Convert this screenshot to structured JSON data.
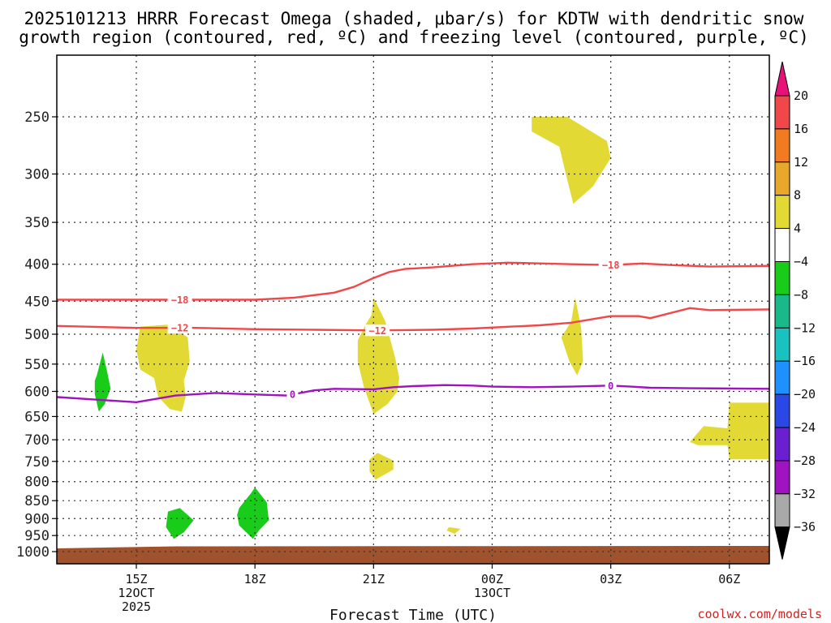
{
  "chart_data": {
    "type": "heatmap",
    "title_lines": [
      "2025101213 HRRR Forecast Omega (shaded, μbar/s) for KDTW with dendritic snow",
      "growth region (contoured, red, ºC) and freezing level (contoured, purple, ºC)"
    ],
    "xlabel": "Forecast Time (UTC)",
    "ylabel": "",
    "x_unit": "hours since 2025-10-12 12Z",
    "xlim": [
      13.0,
      31.1
    ],
    "x_ticks": [
      {
        "x": 15,
        "label": "15Z",
        "sub": [
          "12OCT",
          "2025"
        ]
      },
      {
        "x": 18,
        "label": "18Z",
        "sub": []
      },
      {
        "x": 21,
        "label": "21Z",
        "sub": []
      },
      {
        "x": 24,
        "label": "00Z",
        "sub": [
          "13OCT"
        ]
      },
      {
        "x": 27,
        "label": "03Z",
        "sub": []
      },
      {
        "x": 30,
        "label": "06Z",
        "sub": []
      }
    ],
    "y_unit": "hPa",
    "ylim_pressure": [
      200,
      1020
    ],
    "y_ticks": [
      250,
      300,
      350,
      400,
      450,
      500,
      550,
      600,
      650,
      700,
      750,
      800,
      850,
      900,
      950,
      1000
    ],
    "colorbar": {
      "labels": [
        "20",
        "16",
        "12",
        "8",
        "4",
        "−4",
        "−8",
        "−12",
        "−16",
        "−20",
        "−24",
        "−28",
        "−32",
        "−36"
      ],
      "bands": [
        {
          "range": "20 to 16",
          "color": "#f04848"
        },
        {
          "range": "16 to 12",
          "color": "#f07b20"
        },
        {
          "range": "12 to 8",
          "color": "#e8a82c"
        },
        {
          "range": "8 to 4",
          "color": "#e3d935"
        },
        {
          "range": "4 to -4",
          "color": "#ffffff"
        },
        {
          "range": "-4 to -8",
          "color": "#19cc19"
        },
        {
          "range": "-8 to -12",
          "color": "#19b98c"
        },
        {
          "range": "-12 to -16",
          "color": "#19c1c1"
        },
        {
          "range": "-16 to -20",
          "color": "#1e90ff"
        },
        {
          "range": "-20 to -24",
          "color": "#2948e6"
        },
        {
          "range": "-24 to -28",
          "color": "#6a1fd0"
        },
        {
          "range": "-28 to -32",
          "color": "#9f14c0"
        },
        {
          "range": "-32 to -36",
          "color": "#a9a9a9"
        }
      ],
      "above_color": "#e6127a",
      "below_color": "#000000"
    },
    "shaded_regions": [
      {
        "name": "green-blob-14z",
        "color": "#19cc19",
        "points": [
          [
            14.0,
            570
          ],
          [
            14.15,
            530
          ],
          [
            14.25,
            560
          ],
          [
            14.35,
            595
          ],
          [
            14.2,
            625
          ],
          [
            14.05,
            640
          ],
          [
            13.95,
            605
          ],
          [
            13.95,
            580
          ]
        ]
      },
      {
        "name": "yellow-blob-16z",
        "color": "#e3d935",
        "points": [
          [
            15.0,
            525
          ],
          [
            15.1,
            488
          ],
          [
            15.8,
            485
          ],
          [
            16.3,
            505
          ],
          [
            16.35,
            545
          ],
          [
            16.2,
            580
          ],
          [
            16.25,
            610
          ],
          [
            16.15,
            640
          ],
          [
            15.85,
            635
          ],
          [
            15.55,
            610
          ],
          [
            15.45,
            575
          ],
          [
            15.1,
            560
          ]
        ]
      },
      {
        "name": "yellow-blob-21z",
        "color": "#e3d935",
        "points": [
          [
            20.95,
            470
          ],
          [
            21.0,
            445
          ],
          [
            21.3,
            480
          ],
          [
            21.55,
            540
          ],
          [
            21.65,
            575
          ],
          [
            21.6,
            600
          ],
          [
            21.35,
            625
          ],
          [
            21.0,
            645
          ],
          [
            20.75,
            590
          ],
          [
            20.6,
            545
          ],
          [
            20.6,
            510
          ],
          [
            20.8,
            485
          ]
        ]
      },
      {
        "name": "yellow-blob-02z-upper",
        "color": "#e3d935",
        "points": [
          [
            25.0,
            262
          ],
          [
            25.0,
            250
          ],
          [
            25.9,
            250
          ],
          [
            26.9,
            270
          ],
          [
            27.0,
            285
          ],
          [
            26.55,
            312
          ],
          [
            26.05,
            330
          ],
          [
            25.85,
            298
          ],
          [
            25.7,
            275
          ]
        ]
      },
      {
        "name": "yellow-blob-02z-mid",
        "color": "#e3d935",
        "points": [
          [
            26.0,
            480
          ],
          [
            26.1,
            445
          ],
          [
            26.25,
            490
          ],
          [
            26.3,
            545
          ],
          [
            26.15,
            570
          ],
          [
            25.95,
            545
          ],
          [
            25.75,
            505
          ]
        ]
      },
      {
        "name": "yellow-blob-21z-low",
        "color": "#e3d935",
        "points": [
          [
            20.9,
            745
          ],
          [
            21.1,
            730
          ],
          [
            21.5,
            748
          ],
          [
            21.5,
            770
          ],
          [
            21.05,
            795
          ],
          [
            20.9,
            775
          ]
        ]
      },
      {
        "name": "yellow-blob-06z",
        "color": "#e3d935",
        "points": [
          [
            29.0,
            705
          ],
          [
            29.35,
            670
          ],
          [
            29.95,
            675
          ],
          [
            30.0,
            622
          ],
          [
            31.1,
            622
          ],
          [
            31.1,
            745
          ],
          [
            30.0,
            745
          ],
          [
            29.95,
            712
          ],
          [
            29.2,
            712
          ]
        ]
      },
      {
        "name": "yellow-speck-2230z",
        "color": "#e3d935",
        "points": [
          [
            22.9,
            925
          ],
          [
            23.2,
            930
          ],
          [
            23.05,
            945
          ],
          [
            22.85,
            935
          ]
        ]
      },
      {
        "name": "green-blob-16z-low",
        "color": "#19cc19",
        "points": [
          [
            15.8,
            880
          ],
          [
            16.1,
            870
          ],
          [
            16.45,
            905
          ],
          [
            16.2,
            940
          ],
          [
            15.95,
            960
          ],
          [
            15.75,
            925
          ]
        ]
      },
      {
        "name": "green-blob-18z-low",
        "color": "#19cc19",
        "points": [
          [
            17.6,
            870
          ],
          [
            17.9,
            830
          ],
          [
            18.0,
            815
          ],
          [
            18.3,
            855
          ],
          [
            18.35,
            905
          ],
          [
            18.1,
            935
          ],
          [
            17.95,
            960
          ],
          [
            17.6,
            920
          ],
          [
            17.55,
            890
          ]
        ]
      }
    ],
    "terrain": {
      "color": "#a0522d",
      "top_pressure": 1000
    },
    "contours": [
      {
        "name": "dgz-minus18",
        "label": "−18",
        "color": "#f04848",
        "label_at": [
          [
            16.1,
            27.0
          ]
        ],
        "points": [
          [
            13.0,
            448
          ],
          [
            15.0,
            448
          ],
          [
            17.0,
            448
          ],
          [
            18.0,
            448
          ],
          [
            19.0,
            445
          ],
          [
            20.0,
            438
          ],
          [
            20.5,
            430
          ],
          [
            21.0,
            418
          ],
          [
            21.4,
            410
          ],
          [
            21.8,
            406
          ],
          [
            22.5,
            404
          ],
          [
            23.5,
            400
          ],
          [
            24.4,
            398
          ],
          [
            25.3,
            399
          ],
          [
            26.0,
            400
          ],
          [
            27.0,
            401
          ],
          [
            27.8,
            399
          ],
          [
            28.5,
            401
          ],
          [
            29.5,
            403
          ],
          [
            31.1,
            402
          ]
        ]
      },
      {
        "name": "dgz-minus12",
        "label": "−12",
        "color": "#f04848",
        "label_at": [
          [
            16.1
          ],
          [
            21.1
          ]
        ],
        "points": [
          [
            13.0,
            487
          ],
          [
            15.0,
            490
          ],
          [
            16.5,
            490
          ],
          [
            18.0,
            492
          ],
          [
            19.5,
            493
          ],
          [
            21.0,
            494
          ],
          [
            22.5,
            493
          ],
          [
            23.5,
            491
          ],
          [
            24.5,
            488
          ],
          [
            25.2,
            486
          ],
          [
            26.0,
            482
          ],
          [
            27.0,
            472
          ],
          [
            27.7,
            472
          ],
          [
            28.0,
            475
          ],
          [
            29.0,
            460
          ],
          [
            29.5,
            463
          ],
          [
            31.1,
            462
          ]
        ]
      },
      {
        "name": "freezing-level-0",
        "label": "0",
        "color": "#9f14c0",
        "label_at": [
          [
            18.95
          ],
          [
            27.0
          ]
        ],
        "points": [
          [
            13.0,
            611
          ],
          [
            14.0,
            616
          ],
          [
            15.0,
            621
          ],
          [
            16.0,
            608
          ],
          [
            17.0,
            603
          ],
          [
            18.0,
            606
          ],
          [
            18.8,
            608
          ],
          [
            19.5,
            598
          ],
          [
            20.0,
            595
          ],
          [
            21.0,
            596
          ],
          [
            21.5,
            592
          ],
          [
            22.0,
            590
          ],
          [
            22.8,
            588
          ],
          [
            23.5,
            589
          ],
          [
            24.0,
            591
          ],
          [
            25.0,
            592
          ],
          [
            26.0,
            591
          ],
          [
            27.0,
            589
          ],
          [
            27.5,
            591
          ],
          [
            28.0,
            593
          ],
          [
            29.0,
            594
          ],
          [
            31.1,
            595
          ]
        ]
      }
    ],
    "grid": true,
    "legend": "right (colorbar)"
  },
  "credit": "coolwx.com/models"
}
